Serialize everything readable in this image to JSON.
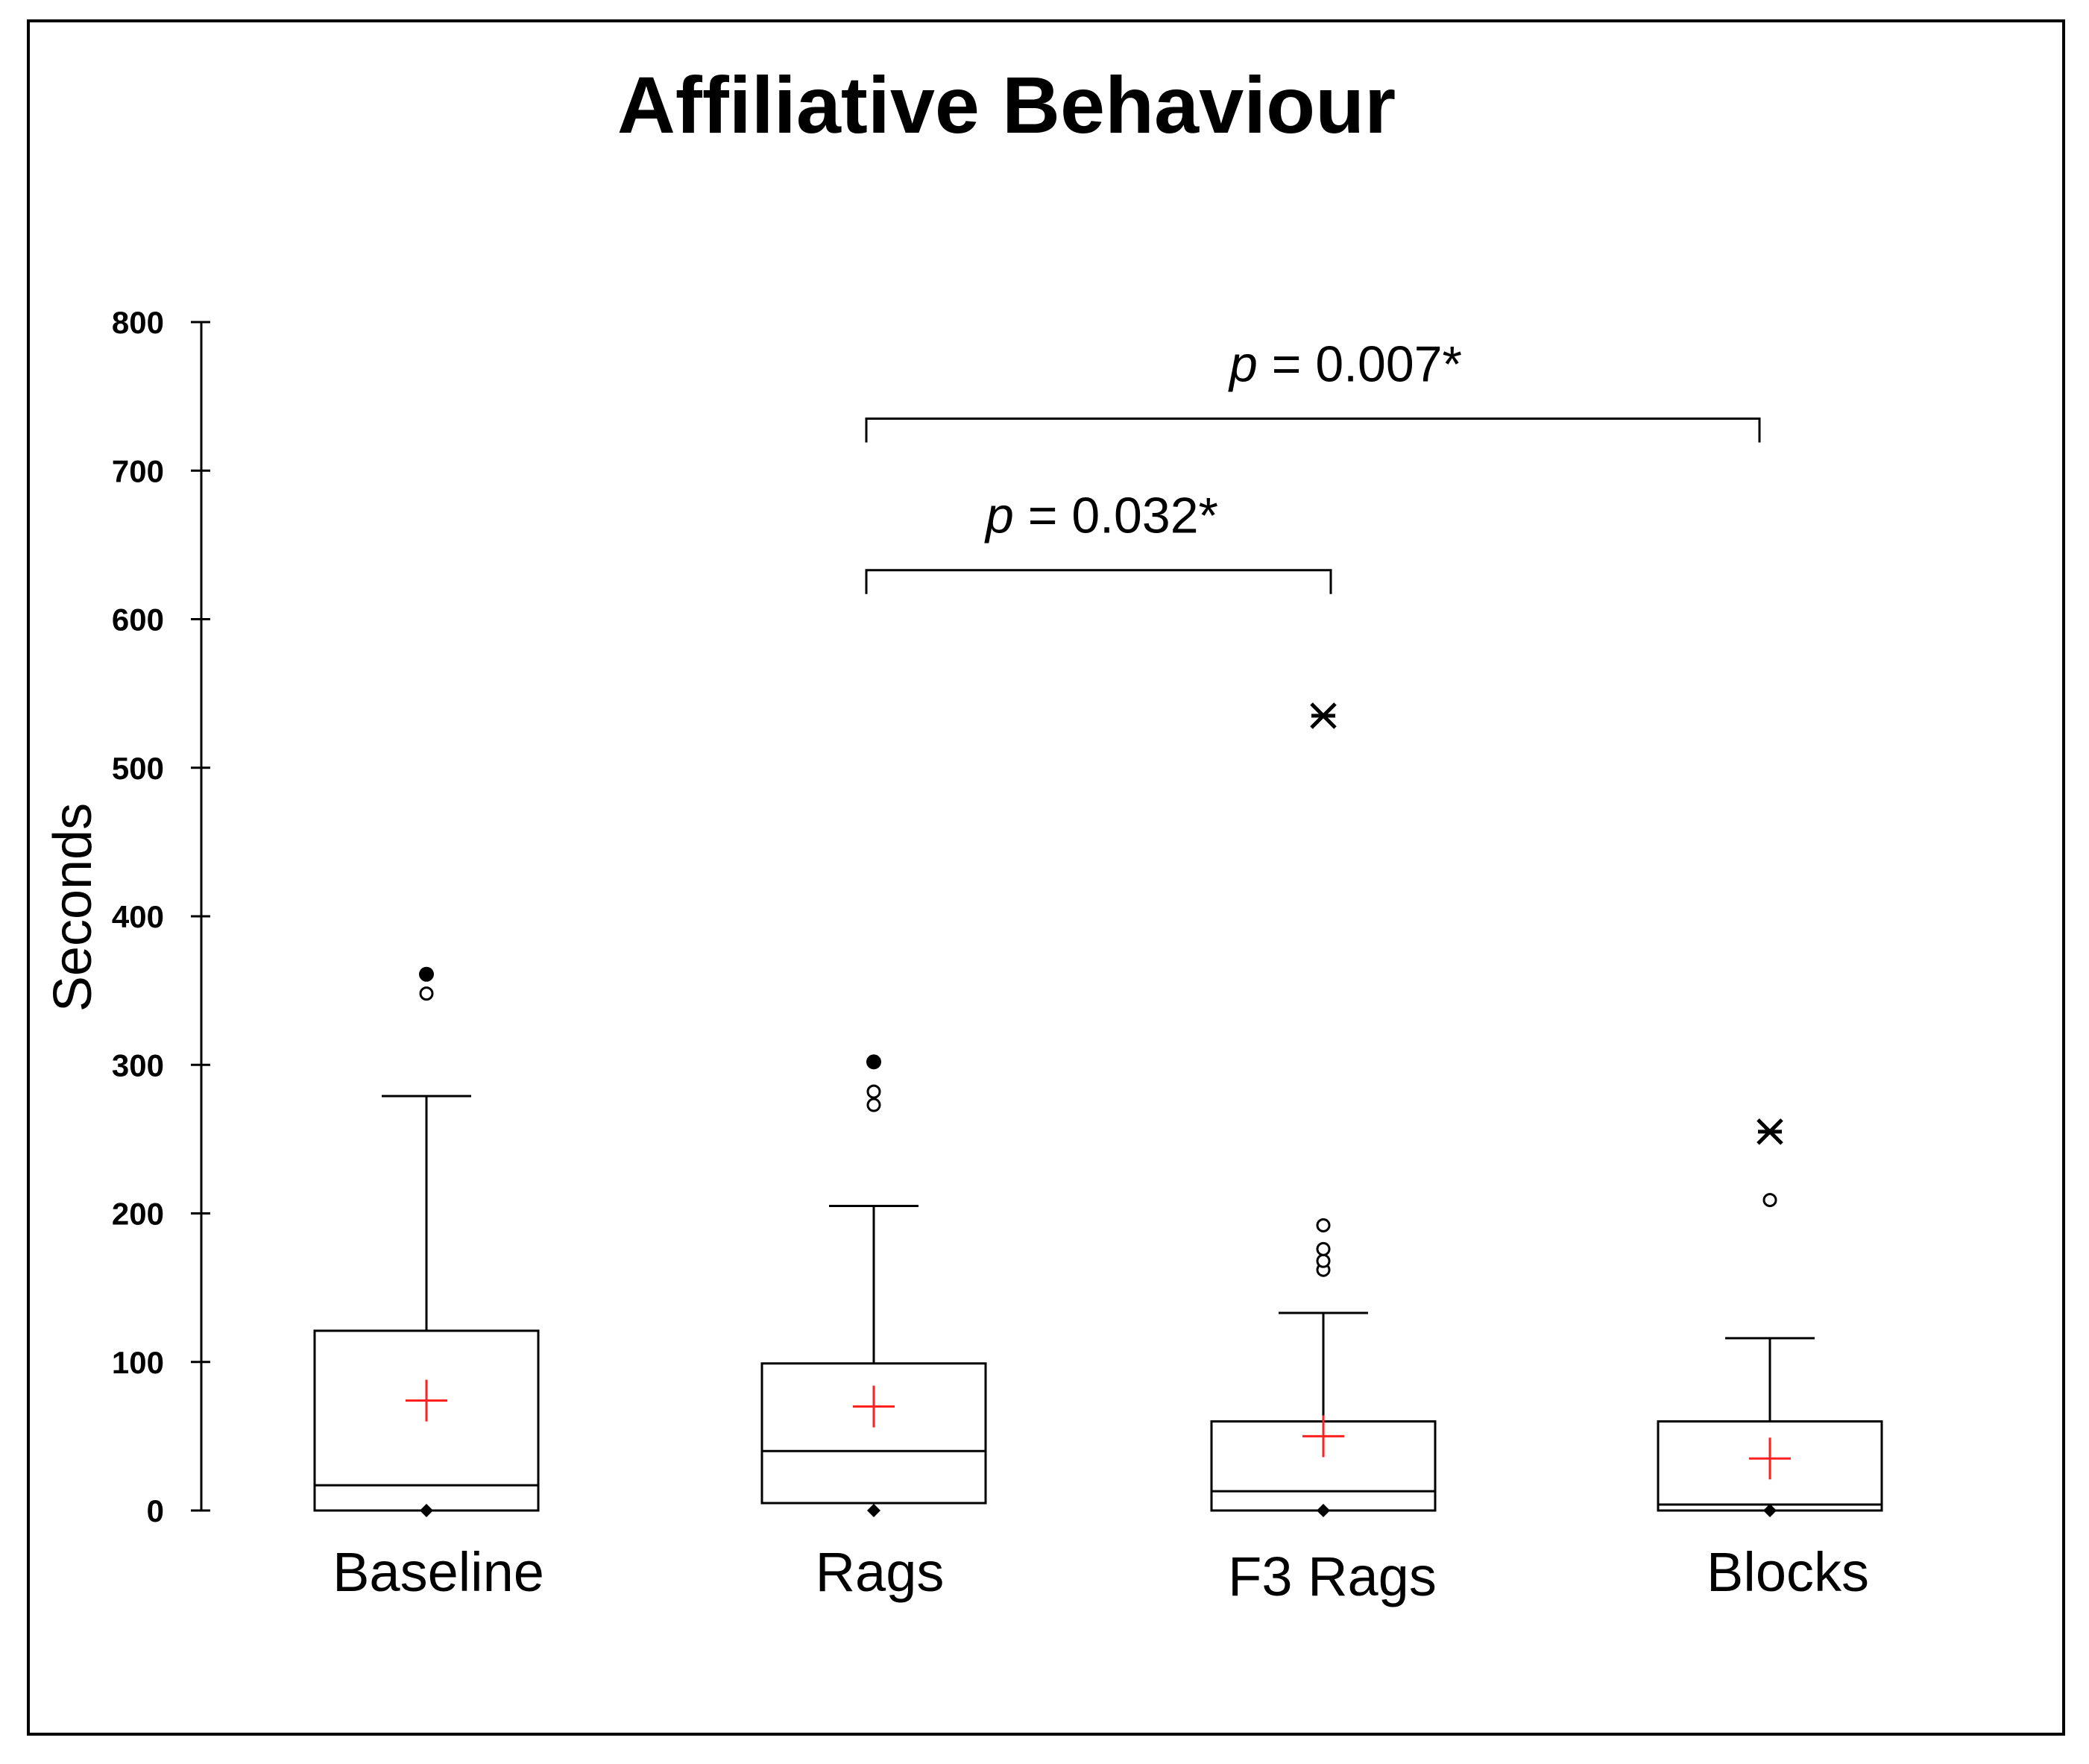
{
  "chart_data": {
    "type": "box",
    "title": "Affiliative Behaviour",
    "xlabel": "",
    "ylabel": "Seconds",
    "ylim": [
      0,
      800
    ],
    "yticks": [
      0,
      100,
      200,
      300,
      400,
      500,
      600,
      700,
      800
    ],
    "categories": [
      "Baseline",
      "Rags",
      "F3 Rags",
      "Blocks"
    ],
    "boxes": [
      {
        "category": "Baseline",
        "min": 0,
        "q1": 0,
        "median": 17,
        "q3": 121,
        "whisker_high": 279,
        "mean": 74,
        "outliers_open": [
          348
        ],
        "outliers_solid": [
          361
        ],
        "extremes": []
      },
      {
        "category": "Rags",
        "min": 0,
        "q1": 5,
        "median": 40,
        "q3": 99,
        "whisker_high": 205,
        "mean": 70,
        "outliers_open": [
          273,
          282
        ],
        "outliers_solid": [
          302
        ],
        "extremes": []
      },
      {
        "category": "F3 Rags",
        "min": 0,
        "q1": 0,
        "median": 13,
        "q3": 60,
        "whisker_high": 133,
        "mean": 50,
        "outliers_open": [
          162,
          168,
          176,
          192
        ],
        "outliers_solid": [],
        "extremes": [
          535
        ]
      },
      {
        "category": "Blocks",
        "min": 0,
        "q1": 0,
        "median": 4,
        "q3": 60,
        "whisker_high": 116,
        "mean": 35,
        "outliers_open": [
          209
        ],
        "outliers_solid": [],
        "extremes": [
          255
        ]
      }
    ],
    "comparisons": [
      {
        "from": "Rags",
        "to": "F3 Rags",
        "p_prefix": "p",
        "p_text": " = 0.032*",
        "bracket_y": 633
      },
      {
        "from": "Rags",
        "to": "Blocks",
        "p_prefix": "p",
        "p_text": " = 0.007*",
        "bracket_y": 735
      }
    ]
  }
}
